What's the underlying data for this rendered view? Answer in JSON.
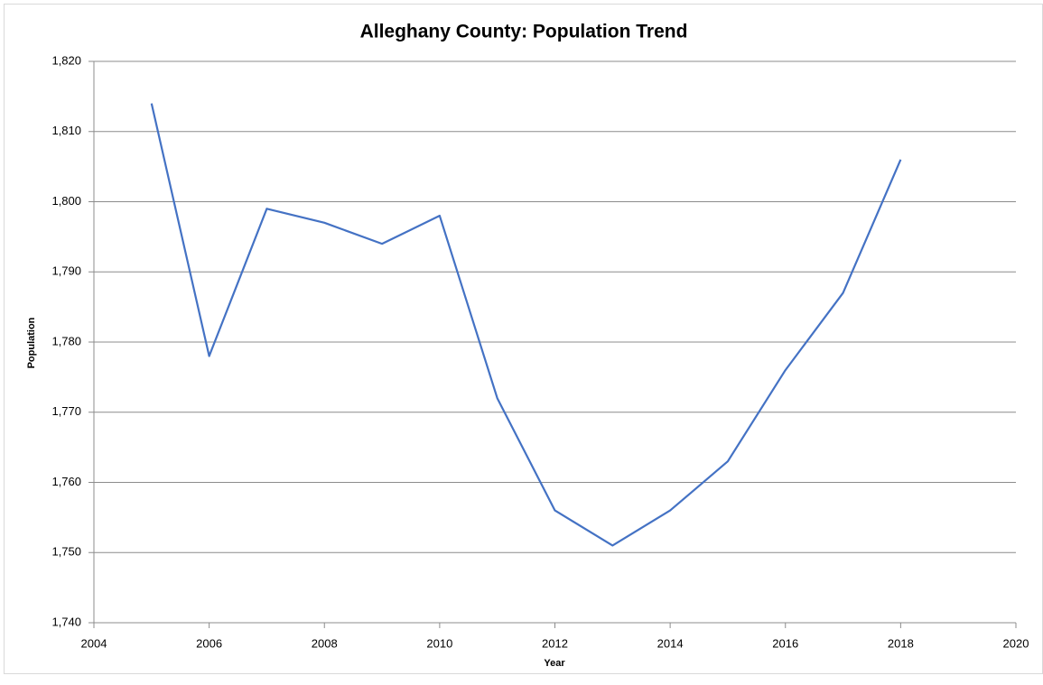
{
  "chart_data": {
    "type": "line",
    "title": "Alleghany County: Population Trend",
    "x_label": "Year",
    "y_label": "Population",
    "x": [
      2005,
      2006,
      2007,
      2008,
      2009,
      2010,
      2011,
      2012,
      2013,
      2014,
      2015,
      2016,
      2017,
      2018
    ],
    "series": [
      {
        "name": "Population",
        "color": "#4472c4",
        "values": [
          1814,
          1778,
          1799,
          1797,
          1794,
          1798,
          1772,
          1756,
          1751,
          1756,
          1763,
          1776,
          1787,
          1806
        ]
      }
    ],
    "xlim": [
      2004,
      2020
    ],
    "xticks": [
      2004,
      2006,
      2008,
      2010,
      2012,
      2014,
      2016,
      2018,
      2020
    ],
    "ylim": [
      1740,
      1820
    ],
    "yticks": [
      {
        "value": 1740,
        "label": "1,740"
      },
      {
        "value": 1750,
        "label": "1,750"
      },
      {
        "value": 1760,
        "label": "1,760"
      },
      {
        "value": 1770,
        "label": "1,770"
      },
      {
        "value": 1780,
        "label": "1,780"
      },
      {
        "value": 1790,
        "label": "1,790"
      },
      {
        "value": 1800,
        "label": "1,800"
      },
      {
        "value": 1810,
        "label": "1,810"
      },
      {
        "value": 1820,
        "label": "1,820"
      }
    ],
    "grid": true
  }
}
